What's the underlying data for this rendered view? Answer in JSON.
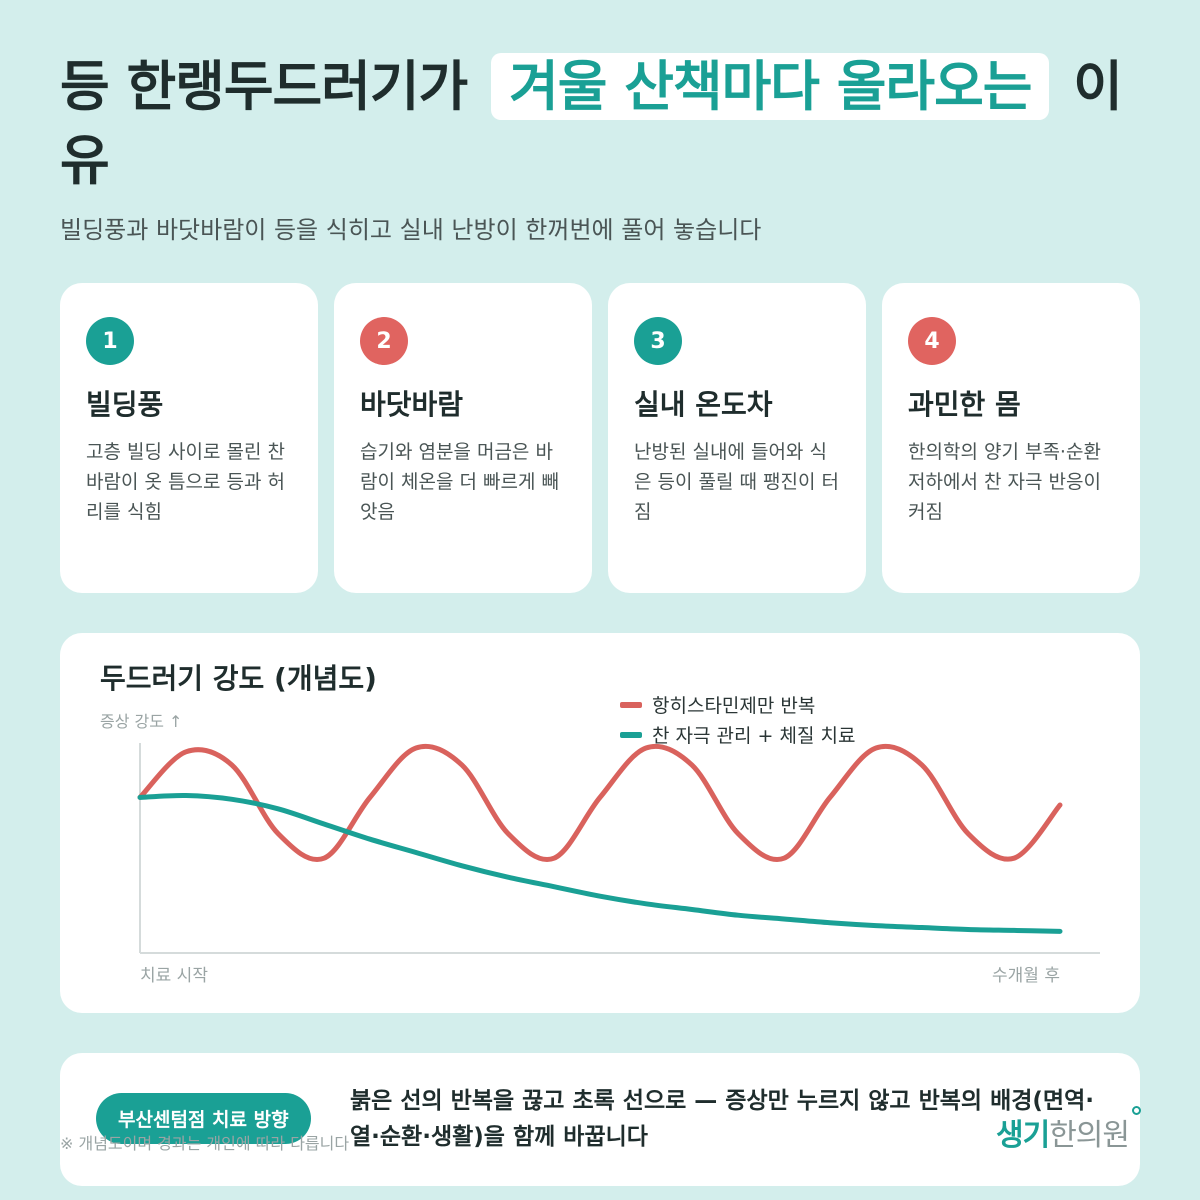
{
  "header": {
    "title_before": "등 한랭두드러기가",
    "title_highlight": "겨울 산책마다 올라오는",
    "title_after": "이유",
    "subtitle": "빌딩풍과 바닷바람이 등을 식히고 실내 난방이 한꺼번에 풀어 놓습니다"
  },
  "cards": [
    {
      "number": "1",
      "title": "빌딩풍",
      "desc": "고층 빌딩 사이로 몰린 찬바람이 옷 틈으로 등과 허리를 식힘",
      "badge_color": "#1aa095"
    },
    {
      "number": "2",
      "title": "바닷바람",
      "desc": "습기와 염분을 머금은 바람이 체온을 더 빠르게 빼앗음",
      "badge_color": "#e06460"
    },
    {
      "number": "3",
      "title": "실내 온도차",
      "desc": "난방된 실내에 들어와 식은 등이 풀릴 때 팽진이 터짐",
      "badge_color": "#1aa095"
    },
    {
      "number": "4",
      "title": "과민한 몸",
      "desc": "한의학의 양기 부족·순환 저하에서 찬 자극 반응이 커짐",
      "badge_color": "#e06460"
    }
  ],
  "chart_data": {
    "type": "line",
    "title": "두드러기 강도 (개념도)",
    "ylabel": "증상 강도 ↑",
    "x_start_label": "치료 시작",
    "x_end_label": "수개월 후",
    "legend_position": "top-right",
    "grid": false,
    "x": [
      0,
      0.05,
      0.1,
      0.15,
      0.2,
      0.25,
      0.3,
      0.35,
      0.4,
      0.45,
      0.5,
      0.55,
      0.6,
      0.65,
      0.7,
      0.75,
      0.8,
      0.85,
      0.9,
      0.95,
      1.0
    ],
    "series": [
      {
        "name": "항히스타민제만 반복",
        "color": "#d9625d",
        "values": [
          0.74,
          0.98,
          0.91,
          0.55,
          0.42,
          0.74,
          1.0,
          0.91,
          0.55,
          0.42,
          0.74,
          1.0,
          0.91,
          0.55,
          0.42,
          0.74,
          1.0,
          0.91,
          0.55,
          0.42,
          0.7
        ]
      },
      {
        "name": "찬 자극 관리 + 체질 치료",
        "color": "#1aa095",
        "values": [
          0.74,
          0.75,
          0.73,
          0.68,
          0.6,
          0.52,
          0.45,
          0.38,
          0.32,
          0.27,
          0.22,
          0.18,
          0.15,
          0.12,
          0.1,
          0.08,
          0.065,
          0.055,
          0.045,
          0.04,
          0.035
        ]
      }
    ]
  },
  "bottom": {
    "pill": "부산센텀점 치료 방향",
    "text": "붉은 선의 반복을 끊고 초록 선으로 — 증상만 누르지 않고 반복의 배경(면역·열·순환·생활)을 함께 바꿉니다",
    "footnote": "※ 개념도이며 경과는 개인에 따라 다릅니다",
    "logo_main": "생기",
    "logo_sub": "한의원"
  }
}
